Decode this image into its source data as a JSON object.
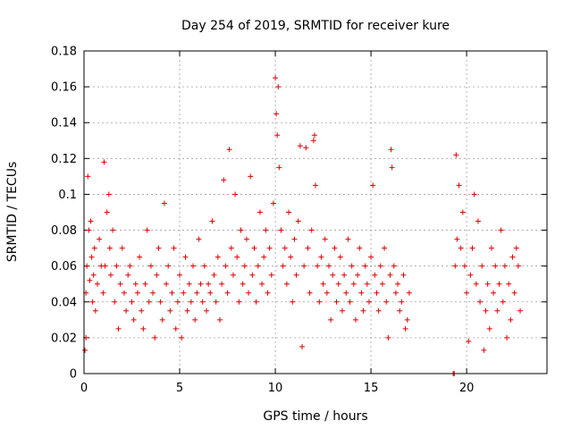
{
  "chart_data": {
    "type": "scatter",
    "title": "Day 254 of 2019, SRMTID for receiver kure",
    "xlabel": "GPS time / hours",
    "ylabel": "SRMTID / TECUs",
    "xlim": [
      0,
      24.2
    ],
    "ylim": [
      0,
      0.18
    ],
    "xticks": [
      0,
      5,
      10,
      15,
      20
    ],
    "xtick_labels": [
      "0",
      "5",
      "10",
      "15",
      "20"
    ],
    "yticks": [
      0,
      0.02,
      0.04,
      0.06,
      0.08,
      0.1,
      0.12,
      0.14,
      0.16,
      0.18
    ],
    "ytick_labels": [
      "0",
      "0.02",
      "0.04",
      "0.06",
      "0.08",
      "0.1",
      "0.12",
      "0.14",
      "0.16",
      "0.18"
    ],
    "grid": true,
    "marker": "plus",
    "color": "#e00000",
    "series": [
      {
        "name": "SRMTID",
        "points": [
          [
            0.05,
            0.013
          ],
          [
            0.1,
            0.02
          ],
          [
            0.1,
            0.045
          ],
          [
            0.15,
            0.06
          ],
          [
            0.2,
            0.11
          ],
          [
            0.25,
            0.08
          ],
          [
            0.3,
            0.052
          ],
          [
            0.35,
            0.085
          ],
          [
            0.4,
            0.065
          ],
          [
            0.45,
            0.04
          ],
          [
            0.5,
            0.055
          ],
          [
            0.55,
            0.07
          ],
          [
            0.6,
            0.035
          ],
          [
            0.7,
            0.05
          ],
          [
            0.8,
            0.075
          ],
          [
            0.9,
            0.06
          ],
          [
            1.0,
            0.045
          ],
          [
            1.05,
            0.118
          ],
          [
            1.1,
            0.06
          ],
          [
            1.2,
            0.09
          ],
          [
            1.3,
            0.1
          ],
          [
            1.35,
            0.07
          ],
          [
            1.4,
            0.055
          ],
          [
            1.5,
            0.08
          ],
          [
            1.6,
            0.04
          ],
          [
            1.7,
            0.06
          ],
          [
            1.8,
            0.025
          ],
          [
            1.9,
            0.05
          ],
          [
            2.0,
            0.07
          ],
          [
            2.1,
            0.045
          ],
          [
            2.2,
            0.035
          ],
          [
            2.3,
            0.055
          ],
          [
            2.4,
            0.06
          ],
          [
            2.5,
            0.04
          ],
          [
            2.6,
            0.03
          ],
          [
            2.7,
            0.05
          ],
          [
            2.8,
            0.045
          ],
          [
            2.9,
            0.065
          ],
          [
            3.0,
            0.035
          ],
          [
            3.1,
            0.025
          ],
          [
            3.2,
            0.05
          ],
          [
            3.3,
            0.08
          ],
          [
            3.4,
            0.04
          ],
          [
            3.5,
            0.06
          ],
          [
            3.6,
            0.045
          ],
          [
            3.7,
            0.02
          ],
          [
            3.8,
            0.055
          ],
          [
            3.9,
            0.07
          ],
          [
            4.0,
            0.04
          ],
          [
            4.1,
            0.03
          ],
          [
            4.2,
            0.095
          ],
          [
            4.3,
            0.05
          ],
          [
            4.4,
            0.06
          ],
          [
            4.5,
            0.035
          ],
          [
            4.6,
            0.045
          ],
          [
            4.7,
            0.07
          ],
          [
            4.8,
            0.025
          ],
          [
            4.9,
            0.04
          ],
          [
            5.0,
            0.055
          ],
          [
            5.1,
            0.02
          ],
          [
            5.2,
            0.045
          ],
          [
            5.3,
            0.065
          ],
          [
            5.4,
            0.035
          ],
          [
            5.5,
            0.05
          ],
          [
            5.6,
            0.04
          ],
          [
            5.7,
            0.06
          ],
          [
            5.8,
            0.03
          ],
          [
            5.9,
            0.045
          ],
          [
            6.0,
            0.075
          ],
          [
            6.1,
            0.05
          ],
          [
            6.2,
            0.04
          ],
          [
            6.3,
            0.06
          ],
          [
            6.4,
            0.035
          ],
          [
            6.5,
            0.05
          ],
          [
            6.6,
            0.045
          ],
          [
            6.7,
            0.085
          ],
          [
            6.8,
            0.055
          ],
          [
            6.9,
            0.04
          ],
          [
            7.0,
            0.065
          ],
          [
            7.1,
            0.03
          ],
          [
            7.2,
            0.05
          ],
          [
            7.3,
            0.108
          ],
          [
            7.4,
            0.06
          ],
          [
            7.5,
            0.045
          ],
          [
            7.6,
            0.125
          ],
          [
            7.7,
            0.07
          ],
          [
            7.8,
            0.055
          ],
          [
            7.9,
            0.1
          ],
          [
            8.0,
            0.065
          ],
          [
            8.1,
            0.04
          ],
          [
            8.2,
            0.08
          ],
          [
            8.3,
            0.05
          ],
          [
            8.4,
            0.06
          ],
          [
            8.5,
            0.075
          ],
          [
            8.6,
            0.045
          ],
          [
            8.7,
            0.11
          ],
          [
            8.8,
            0.055
          ],
          [
            8.9,
            0.07
          ],
          [
            9.0,
            0.04
          ],
          [
            9.1,
            0.06
          ],
          [
            9.2,
            0.09
          ],
          [
            9.3,
            0.05
          ],
          [
            9.4,
            0.065
          ],
          [
            9.5,
            0.08
          ],
          [
            9.6,
            0.045
          ],
          [
            9.7,
            0.07
          ],
          [
            9.8,
            0.055
          ],
          [
            9.9,
            0.095
          ],
          [
            10.0,
            0.165
          ],
          [
            10.05,
            0.145
          ],
          [
            10.1,
            0.133
          ],
          [
            10.15,
            0.16
          ],
          [
            10.2,
            0.115
          ],
          [
            10.3,
            0.08
          ],
          [
            10.4,
            0.06
          ],
          [
            10.5,
            0.07
          ],
          [
            10.6,
            0.05
          ],
          [
            10.7,
            0.09
          ],
          [
            10.8,
            0.065
          ],
          [
            10.9,
            0.04
          ],
          [
            11.0,
            0.075
          ],
          [
            11.1,
            0.055
          ],
          [
            11.2,
            0.085
          ],
          [
            11.3,
            0.127
          ],
          [
            11.4,
            0.015
          ],
          [
            11.5,
            0.06
          ],
          [
            11.6,
            0.126
          ],
          [
            11.7,
            0.07
          ],
          [
            11.8,
            0.045
          ],
          [
            11.9,
            0.08
          ],
          [
            12.0,
            0.13
          ],
          [
            12.05,
            0.133
          ],
          [
            12.1,
            0.105
          ],
          [
            12.2,
            0.06
          ],
          [
            12.3,
            0.04
          ],
          [
            12.4,
            0.065
          ],
          [
            12.5,
            0.05
          ],
          [
            12.6,
            0.075
          ],
          [
            12.7,
            0.045
          ],
          [
            12.8,
            0.06
          ],
          [
            12.9,
            0.03
          ],
          [
            13.0,
            0.055
          ],
          [
            13.1,
            0.07
          ],
          [
            13.2,
            0.04
          ],
          [
            13.3,
            0.05
          ],
          [
            13.4,
            0.065
          ],
          [
            13.5,
            0.035
          ],
          [
            13.6,
            0.055
          ],
          [
            13.7,
            0.045
          ],
          [
            13.8,
            0.075
          ],
          [
            13.9,
            0.04
          ],
          [
            14.0,
            0.06
          ],
          [
            14.1,
            0.05
          ],
          [
            14.2,
            0.03
          ],
          [
            14.3,
            0.055
          ],
          [
            14.4,
            0.07
          ],
          [
            14.5,
            0.045
          ],
          [
            14.6,
            0.035
          ],
          [
            14.7,
            0.06
          ],
          [
            14.8,
            0.05
          ],
          [
            14.9,
            0.04
          ],
          [
            15.0,
            0.065
          ],
          [
            15.1,
            0.105
          ],
          [
            15.2,
            0.055
          ],
          [
            15.3,
            0.045
          ],
          [
            15.4,
            0.035
          ],
          [
            15.5,
            0.06
          ],
          [
            15.6,
            0.05
          ],
          [
            15.7,
            0.07
          ],
          [
            15.8,
            0.04
          ],
          [
            15.9,
            0.02
          ],
          [
            16.0,
            0.055
          ],
          [
            16.05,
            0.125
          ],
          [
            16.1,
            0.115
          ],
          [
            16.2,
            0.06
          ],
          [
            16.3,
            0.045
          ],
          [
            16.4,
            0.05
          ],
          [
            16.5,
            0.035
          ],
          [
            16.6,
            0.04
          ],
          [
            16.7,
            0.055
          ],
          [
            16.8,
            0.025
          ],
          [
            16.9,
            0.03
          ],
          [
            17.0,
            0.045
          ],
          [
            19.3,
            0.0
          ],
          [
            19.35,
            0.0
          ],
          [
            19.4,
            0.06
          ],
          [
            19.45,
            0.122
          ],
          [
            19.5,
            0.075
          ],
          [
            19.6,
            0.105
          ],
          [
            19.7,
            0.07
          ],
          [
            19.8,
            0.09
          ],
          [
            19.9,
            0.06
          ],
          [
            20.0,
            0.045
          ],
          [
            20.1,
            0.018
          ],
          [
            20.2,
            0.055
          ],
          [
            20.3,
            0.07
          ],
          [
            20.4,
            0.1
          ],
          [
            20.5,
            0.05
          ],
          [
            20.6,
            0.085
          ],
          [
            20.7,
            0.04
          ],
          [
            20.8,
            0.06
          ],
          [
            20.9,
            0.013
          ],
          [
            21.0,
            0.035
          ],
          [
            21.1,
            0.05
          ],
          [
            21.2,
            0.025
          ],
          [
            21.3,
            0.07
          ],
          [
            21.4,
            0.045
          ],
          [
            21.5,
            0.06
          ],
          [
            21.6,
            0.035
          ],
          [
            21.7,
            0.05
          ],
          [
            21.8,
            0.08
          ],
          [
            21.9,
            0.04
          ],
          [
            22.0,
            0.06
          ],
          [
            22.1,
            0.02
          ],
          [
            22.2,
            0.05
          ],
          [
            22.3,
            0.03
          ],
          [
            22.4,
            0.065
          ],
          [
            22.5,
            0.045
          ],
          [
            22.6,
            0.07
          ],
          [
            22.7,
            0.06
          ],
          [
            22.8,
            0.035
          ]
        ]
      }
    ]
  }
}
